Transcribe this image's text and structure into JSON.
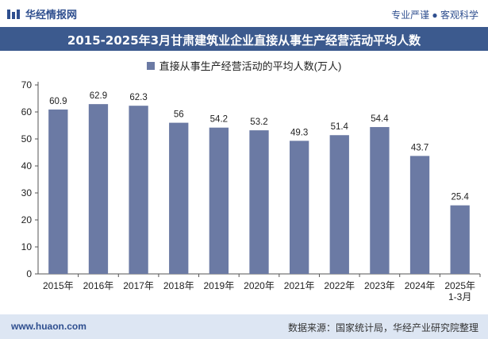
{
  "header": {
    "brand": "华经情报网",
    "slogan": "专业严谨 ● 客观科学"
  },
  "footer": {
    "site": "www.huaon.com",
    "source": "数据来源：国家统计局，华经产业研究院整理"
  },
  "colors": {
    "bar": "#6b7aa4",
    "title_bg": "#3c5a8e",
    "footer_bg": "#dde6f3"
  },
  "chart_data": {
    "type": "bar",
    "title": "2015-2025年3月甘肃建筑业企业直接从事生产经营活动平均人数",
    "legend": "直接从事生产经营活动的平均人数(万人)",
    "categories": [
      "2015年",
      "2016年",
      "2017年",
      "2018年",
      "2019年",
      "2020年",
      "2021年",
      "2022年",
      "2023年",
      "2024年",
      "2025年 1-3月"
    ],
    "values": [
      60.9,
      62.9,
      62.3,
      56,
      54.2,
      53.2,
      49.3,
      51.4,
      54.4,
      43.7,
      25.4
    ],
    "ylim": [
      0,
      70
    ],
    "yticks": [
      0,
      10,
      20,
      30,
      40,
      50,
      60,
      70
    ],
    "grid": false,
    "legend_position": "top"
  }
}
